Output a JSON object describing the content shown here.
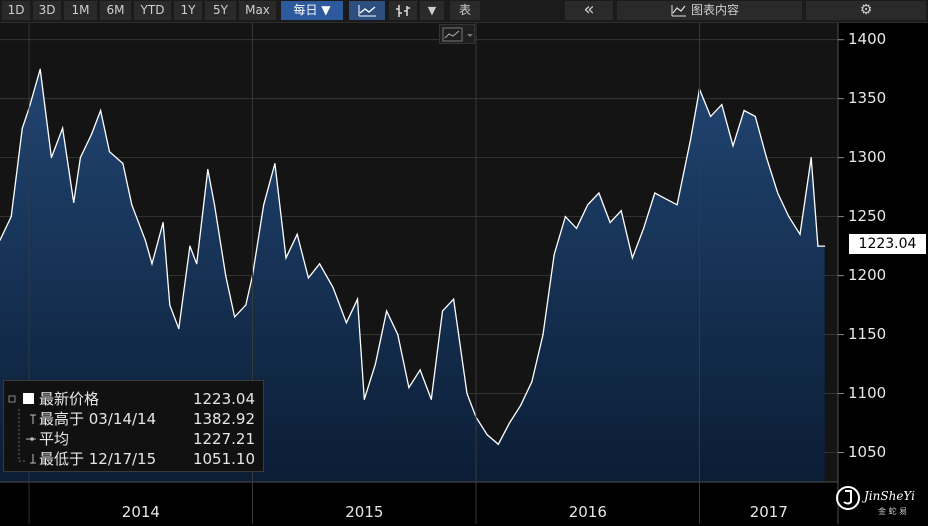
{
  "toolbar": {
    "ranges": [
      "1D",
      "3D",
      "1M",
      "6M",
      "YTD",
      "1Y",
      "5Y",
      "Max"
    ],
    "frequency": "每日 ▼",
    "table_label": "表",
    "collapse_glyph": "«",
    "chart_content_label": "图表内容",
    "settings_glyph": "⚙",
    "dropdown_glyph": "▼"
  },
  "legend": {
    "rows": [
      {
        "label": "最新价格",
        "value": "1223.04"
      },
      {
        "label": "最高于 03/14/14",
        "value": "1382.92"
      },
      {
        "label": "平均",
        "value": "1227.21"
      },
      {
        "label": "最低于 12/17/15",
        "value": "1051.10"
      }
    ]
  },
  "last_price_tag": "1223.04",
  "watermark": {
    "text": "JinSheYi",
    "sub": "金 蛇 易"
  },
  "colors": {
    "background": "#000000",
    "plot_background": "#151515",
    "area_top": "#1e3f66",
    "area_bottom": "#0a1c33",
    "line": "#ffffff",
    "grid": "#3a3a3a",
    "active_button": "#2d5a9c"
  },
  "chart_data": {
    "type": "area",
    "title": "",
    "xlabel": "",
    "ylabel": "",
    "ylim": [
      1025,
      1415
    ],
    "yticks": [
      "1050",
      "1100",
      "1150",
      "1200",
      "1250",
      "1300",
      "1350",
      "1400"
    ],
    "xticks": [
      "2014",
      "2015",
      "2016",
      "2017"
    ],
    "xlim": [
      2013.87,
      2017.62
    ],
    "grid": true,
    "legend_position": "bottom-left",
    "series": [
      {
        "x": [
          2013.87,
          2013.92,
          2013.97,
          2014.0,
          2014.05,
          2014.1,
          2014.15,
          2014.2,
          2014.23,
          2014.28,
          2014.32,
          2014.36,
          2014.42,
          2014.46,
          2014.52,
          2014.55,
          2014.6,
          2014.63,
          2014.67,
          2014.72,
          2014.75,
          2014.8,
          2014.83,
          2014.88,
          2014.92,
          2014.97,
          2015.0,
          2015.05,
          2015.1,
          2015.15,
          2015.2,
          2015.25,
          2015.3,
          2015.36,
          2015.42,
          2015.47,
          2015.5,
          2015.55,
          2015.6,
          2015.65,
          2015.7,
          2015.75,
          2015.8,
          2015.85,
          2015.9,
          2015.96,
          2016.0,
          2016.05,
          2016.1,
          2016.15,
          2016.2,
          2016.25,
          2016.3,
          2016.35,
          2016.4,
          2016.45,
          2016.5,
          2016.55,
          2016.6,
          2016.65,
          2016.7,
          2016.75,
          2016.8,
          2016.85,
          2016.9,
          2016.96,
          2017.0,
          2017.05,
          2017.1,
          2017.15,
          2017.2,
          2017.25,
          2017.3,
          2017.35,
          2017.4,
          2017.45,
          2017.5,
          2017.53,
          2017.56
        ],
        "values": [
          1230,
          1250,
          1325,
          1342,
          1375,
          1300,
          1325,
          1262,
          1300,
          1320,
          1340,
          1305,
          1295,
          1260,
          1230,
          1210,
          1245,
          1175,
          1155,
          1225,
          1210,
          1290,
          1260,
          1200,
          1165,
          1175,
          1200,
          1260,
          1295,
          1215,
          1235,
          1198,
          1210,
          1190,
          1160,
          1180,
          1095,
          1125,
          1170,
          1150,
          1105,
          1120,
          1095,
          1170,
          1180,
          1100,
          1080,
          1065,
          1057,
          1075,
          1090,
          1110,
          1150,
          1218,
          1250,
          1240,
          1260,
          1270,
          1245,
          1255,
          1215,
          1240,
          1270,
          1265,
          1260,
          1315,
          1358,
          1335,
          1345,
          1310,
          1340,
          1335,
          1300,
          1270,
          1250,
          1235,
          1300,
          1225,
          1225
        ]
      }
    ]
  }
}
